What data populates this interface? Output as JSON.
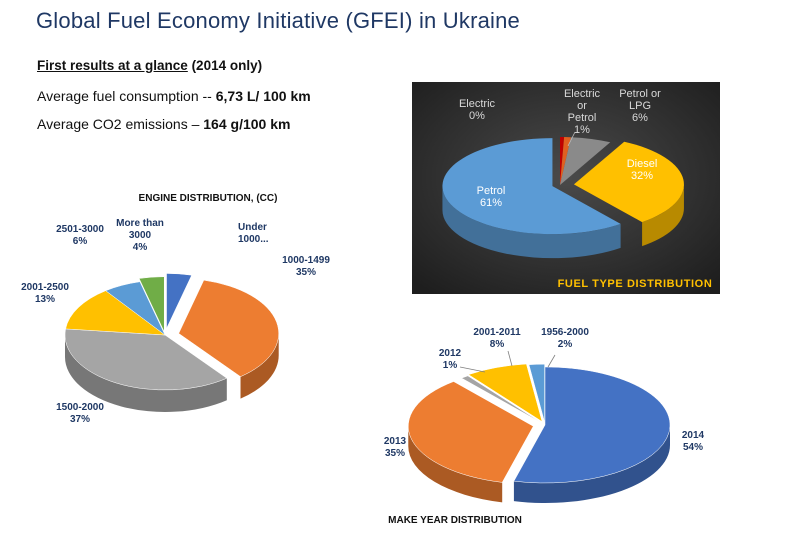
{
  "header": {
    "title": "Global Fuel Economy Initiative (GFEI) in Ukraine",
    "subtitle_underlined": "First results at a glance",
    "subtitle_rest": " (2014 only)",
    "metric1_label": "Average fuel consumption  -- ",
    "metric1_value": "6,73 L/ 100 km",
    "metric2_label": "Average CO2 emissions – ",
    "metric2_value": "164 g/100 km"
  },
  "chart_data": [
    {
      "type": "pie",
      "title": "ENGINE DISTRIBUTION, (CC)",
      "categories": [
        "Under 1000...",
        "1000-1499",
        "1500-2000",
        "2001-2500",
        "2501-3000",
        "More than 3000"
      ],
      "values": [
        4,
        35,
        37,
        13,
        6,
        4
      ],
      "labels": [
        "Under\n1000...",
        "1000-1499\n35%",
        "1500-2000\n37%",
        "2001-2500\n13%",
        "2501-3000\n6%",
        "More than\n3000\n4%"
      ],
      "colors": [
        "#4472c4",
        "#ed7d31",
        "#a5a5a5",
        "#ffc000",
        "#5b9bd5",
        "#70ad47"
      ]
    },
    {
      "type": "pie",
      "title": "FUEL TYPE DISTRIBUTION",
      "categories": [
        "Electric",
        "Electric or Petrol",
        "Petrol or LPG",
        "Diesel",
        "Petrol"
      ],
      "values": [
        0,
        1,
        6,
        32,
        61
      ],
      "labels": [
        "Electric\n0%",
        "Electric\nor\nPetrol\n1%",
        "Petrol or\nLPG\n6%",
        "Diesel\n32%",
        "Petrol\n61%"
      ],
      "colors": [
        "#c00000",
        "#e06020",
        "#8a8a8a",
        "#ffc000",
        "#5b9bd5"
      ]
    },
    {
      "type": "pie",
      "title": "MAKE YEAR DISTRIBUTION",
      "categories": [
        "2014",
        "2013",
        "2012",
        "2001-2011",
        "1956-2000"
      ],
      "values": [
        54,
        35,
        1,
        8,
        2
      ],
      "labels": [
        "2014\n54%",
        "2013\n35%",
        "2012\n1%",
        "2001-2011\n8%",
        "1956-2000\n2%"
      ],
      "colors": [
        "#4472c4",
        "#ed7d31",
        "#a5a5a5",
        "#ffc000",
        "#5b9bd5"
      ]
    }
  ]
}
